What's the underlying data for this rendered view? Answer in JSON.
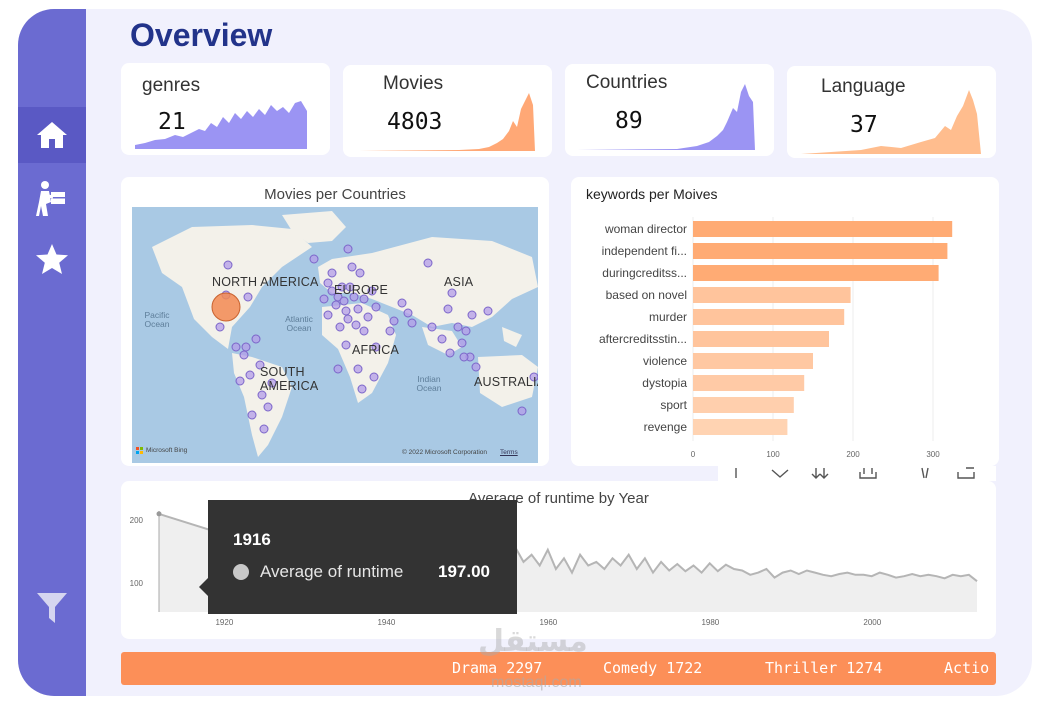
{
  "page": {
    "title": "Overview"
  },
  "sidebar": {
    "items": [
      {
        "icon": "home-icon",
        "active": true
      },
      {
        "icon": "delivery-icon",
        "active": false
      },
      {
        "icon": "star-icon",
        "active": false
      }
    ],
    "filter_icon": "filter-icon"
  },
  "kpis": [
    {
      "label": "genres",
      "value": "21",
      "color": "#9b94f3"
    },
    {
      "label": "Movies",
      "value": "4803",
      "color": "#ffa876"
    },
    {
      "label": "Countries",
      "value": "89",
      "color": "#9b94f3"
    },
    {
      "label": "Language",
      "value": "37",
      "color": "#ffbd8e"
    }
  ],
  "map_panel": {
    "title": "Movies per Countries",
    "continents": [
      "NORTH AMERICA",
      "EUROPE",
      "ASIA",
      "AFRICA",
      "SOUTH AMERICA",
      "AUSTRALIA"
    ],
    "oceans": [
      "Pacific Ocean",
      "Atlantic Ocean",
      "Indian Ocean"
    ],
    "attribution_brand": "Microsoft Bing",
    "copyright": "© 2022 Microsoft Corporation",
    "terms": "Terms"
  },
  "keywords_panel": {
    "chart_data": {
      "type": "bar",
      "orientation": "horizontal",
      "title": "keywords per Moives",
      "categories": [
        "woman director",
        "independent fi...",
        "duringcreditss...",
        "based on novel",
        "murder",
        "aftercreditsstin...",
        "violence",
        "dystopia",
        "sport",
        "revenge"
      ],
      "values": [
        324,
        318,
        307,
        197,
        189,
        170,
        150,
        139,
        126,
        118
      ],
      "xlim": [
        0,
        330
      ],
      "xticks": [
        "0",
        "100",
        "200",
        "300"
      ]
    }
  },
  "runtime_panel": {
    "chart_data": {
      "type": "area",
      "title": "Average of runtime by Year",
      "x": [
        1916,
        1925,
        1927,
        1929,
        1930,
        1932,
        1933,
        1934,
        1935,
        1936,
        1937,
        1938,
        1939,
        1940,
        1941,
        1942,
        1943,
        1944,
        1945,
        1946,
        1947,
        1948,
        1949,
        1950,
        1951,
        1952,
        1953,
        1954,
        1955,
        1956,
        1957,
        1958,
        1959,
        1960,
        1961,
        1962,
        1963,
        1964,
        1965,
        1966,
        1967,
        1968,
        1969,
        1970,
        1971,
        1972,
        1973,
        1974,
        1975,
        1976,
        1977,
        1978,
        1979,
        1980,
        1981,
        1982,
        1983,
        1984,
        1985,
        1986,
        1987,
        1988,
        1989,
        1990,
        1991,
        1992,
        1993,
        1994,
        1995,
        1996,
        1997,
        1998,
        1999,
        2000,
        2001,
        2002,
        2003,
        2004,
        2005,
        2006,
        2007,
        2008,
        2009,
        2010,
        2011,
        2012,
        2013,
        2014,
        2015,
        2016,
        2017
      ],
      "y": [
        197,
        165,
        150,
        115,
        110,
        100,
        120,
        95,
        105,
        110,
        125,
        115,
        140,
        120,
        105,
        110,
        115,
        125,
        110,
        120,
        115,
        110,
        108,
        115,
        120,
        126,
        130,
        112,
        140,
        145,
        135,
        125,
        128,
        150,
        130,
        140,
        125,
        147,
        120,
        135,
        115,
        140,
        125,
        130,
        120,
        135,
        125,
        140,
        120,
        135,
        115,
        130,
        118,
        127,
        117,
        125,
        115,
        128,
        117,
        126,
        120,
        118,
        112,
        115,
        120,
        108,
        115,
        118,
        113,
        118,
        115,
        112,
        110,
        113,
        115,
        112,
        112,
        110,
        115,
        112,
        108,
        110,
        113,
        110,
        112,
        110,
        107,
        112,
        110,
        112,
        103
      ],
      "xticks": [
        "1920",
        "1940",
        "1960",
        "1980",
        "2000"
      ],
      "yticks": [
        "100",
        "200"
      ],
      "xlim": [
        1911,
        2020
      ],
      "ylim": [
        50,
        215
      ]
    },
    "tooltip": {
      "year": "1916",
      "series": "Average of runtime",
      "value": "197.00"
    }
  },
  "ticker": [
    {
      "genre": "Drama",
      "count": "2297"
    },
    {
      "genre": "Comedy",
      "count": "1722"
    },
    {
      "genre": "Thriller",
      "count": "1274"
    },
    {
      "genre": "Actio",
      "count": ""
    }
  ],
  "watermark": {
    "arabic": "مستقل",
    "latin": "mostaql.com"
  }
}
